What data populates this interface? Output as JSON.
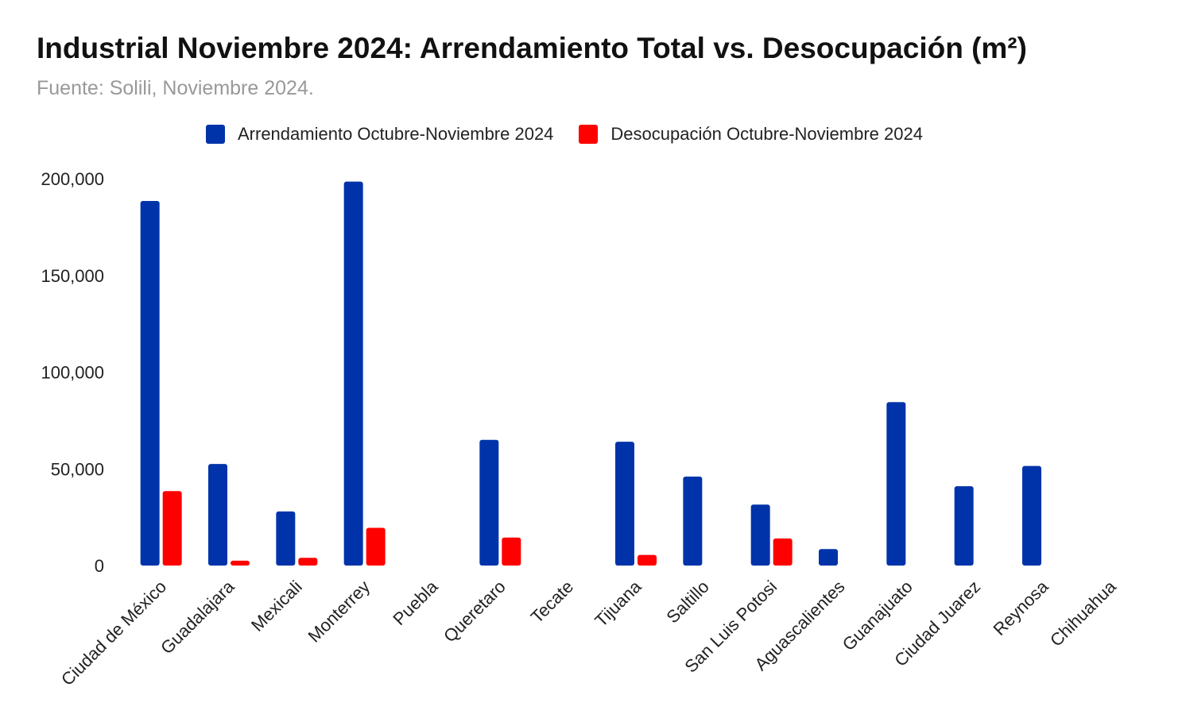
{
  "chart_data": {
    "type": "bar",
    "title": "Industrial Noviembre 2024: Arrendamiento Total vs. Desocupación (m²)",
    "subtitle": "Fuente: Solili, Noviembre 2024.",
    "categories": [
      "Ciudad de México",
      "Guadalajara",
      "Mexicali",
      "Monterrey",
      "Puebla",
      "Queretaro",
      "Tecate",
      "Tijuana",
      "Saltillo",
      "San Luis Potosi",
      "Aguascalientes",
      "Guanajuato",
      "Ciudad Juarez",
      "Reynosa",
      "Chihuahua"
    ],
    "series": [
      {
        "name": "Arrendamiento Octubre-Noviembre 2024",
        "color": "#0033aa",
        "values": [
          188500,
          52500,
          28000,
          198500,
          0,
          65000,
          0,
          64000,
          46000,
          31500,
          8500,
          84500,
          41000,
          51500,
          0
        ]
      },
      {
        "name": "Desocupación Octubre-Noviembre 2024",
        "color": "#ff0000",
        "values": [
          38500,
          2500,
          4000,
          19500,
          0,
          14500,
          0,
          5500,
          0,
          14000,
          0,
          0,
          0,
          0,
          0
        ]
      }
    ],
    "ylim": [
      0,
      200000
    ],
    "yticks": [
      "0",
      "50,000",
      "100,000",
      "150,000",
      "200,000"
    ],
    "ytick_values": [
      0,
      50000,
      100000,
      150000,
      200000
    ],
    "grid": false,
    "legend": "top"
  }
}
